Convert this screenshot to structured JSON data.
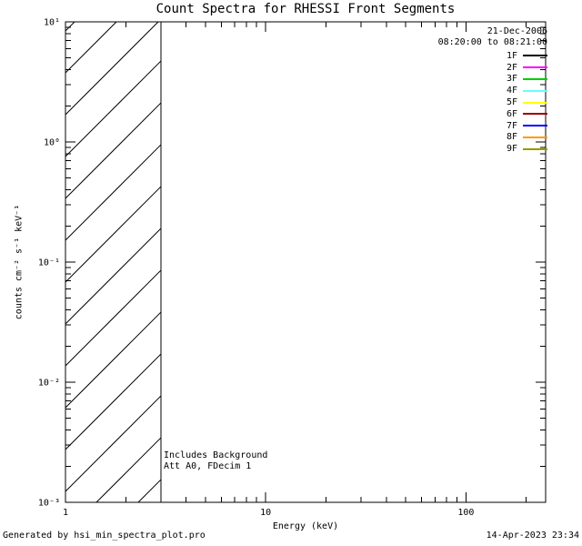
{
  "chart_data": {
    "type": "line",
    "title": "Count Spectra for RHESSI Front Segments",
    "xlabel": "Energy (keV)",
    "ylabel": "counts cm⁻² s⁻¹ keV⁻¹",
    "x_scale": "log",
    "y_scale": "log",
    "xlim": [
      1,
      250
    ],
    "ylim": [
      0.001,
      10
    ],
    "x_ticks": {
      "values": [
        1,
        10,
        100
      ],
      "labels": [
        "1",
        "10",
        "100"
      ]
    },
    "y_ticks": {
      "values": [
        0.001,
        0.01,
        0.1,
        1,
        10
      ],
      "labels": [
        "10⁻³",
        "10⁻²",
        "10⁻¹",
        "10⁰",
        "10¹"
      ]
    },
    "grid": false,
    "legend_position": "top-right",
    "date_label": "21-Dec-2006",
    "time_label": "08:20:00 to 08:21:00",
    "series": [
      {
        "name": "1F",
        "color": "#000000",
        "values": []
      },
      {
        "name": "2F",
        "color": "#ff00ff",
        "values": []
      },
      {
        "name": "3F",
        "color": "#00cc00",
        "values": []
      },
      {
        "name": "4F",
        "color": "#66ffff",
        "values": []
      },
      {
        "name": "5F",
        "color": "#ffff00",
        "values": []
      },
      {
        "name": "6F",
        "color": "#990000",
        "values": []
      },
      {
        "name": "7F",
        "color": "#0000ff",
        "values": []
      },
      {
        "name": "8F",
        "color": "#ff9900",
        "values": []
      },
      {
        "name": "9F",
        "color": "#999900",
        "values": []
      }
    ],
    "annotations": [
      "Includes Background",
      "Att A0, FDecim 1"
    ],
    "background_region": {
      "x_start": 1,
      "x_end": 3,
      "style": "diagonal-hatch",
      "spans_full_y_range": true
    }
  },
  "footer": {
    "left": "Generated by hsi_min_spectra_plot.pro",
    "right": "14-Apr-2023 23:34"
  }
}
